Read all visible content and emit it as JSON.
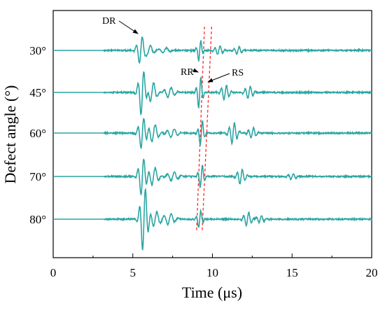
{
  "chart_data": {
    "type": "line",
    "xlabel": "Time (μs)",
    "ylabel": "Defect angle (°)",
    "xlim": [
      0,
      20
    ],
    "x_ticks": [
      "0",
      "5",
      "10",
      "15",
      "20"
    ],
    "grid": false,
    "legend": "none",
    "line_color": "#2aa5a3",
    "series": [
      {
        "name": "30°",
        "bursts": [
          {
            "t": 5.5,
            "amp": 0.9,
            "freq": 2.6,
            "width": 0.28
          },
          {
            "t": 6.0,
            "amp": 0.35,
            "freq": 2.2,
            "width": 0.35
          },
          {
            "t": 7.0,
            "amp": 0.18,
            "freq": 2.0,
            "width": 0.4
          },
          {
            "t": 9.2,
            "amp": 0.75,
            "freq": 3.2,
            "width": 0.18
          },
          {
            "t": 10.4,
            "amp": 0.3,
            "freq": 3.0,
            "width": 0.3
          },
          {
            "t": 11.6,
            "amp": 0.25,
            "freq": 3.0,
            "width": 0.3
          }
        ]
      },
      {
        "name": "45°",
        "bursts": [
          {
            "t": 5.6,
            "amp": 1.6,
            "freq": 2.6,
            "width": 0.28
          },
          {
            "t": 6.2,
            "amp": 0.7,
            "freq": 2.2,
            "width": 0.35
          },
          {
            "t": 7.3,
            "amp": 0.35,
            "freq": 2.2,
            "width": 0.4
          },
          {
            "t": 9.2,
            "amp": 1.1,
            "freq": 3.2,
            "width": 0.2
          },
          {
            "t": 10.8,
            "amp": 0.5,
            "freq": 3.0,
            "width": 0.3
          },
          {
            "t": 12.3,
            "amp": 0.4,
            "freq": 3.0,
            "width": 0.3
          }
        ]
      },
      {
        "name": "60°",
        "bursts": [
          {
            "t": 5.6,
            "amp": 1.1,
            "freq": 2.6,
            "width": 0.28
          },
          {
            "t": 6.3,
            "amp": 0.6,
            "freq": 2.2,
            "width": 0.35
          },
          {
            "t": 7.5,
            "amp": 0.3,
            "freq": 2.2,
            "width": 0.4
          },
          {
            "t": 9.3,
            "amp": 0.9,
            "freq": 3.2,
            "width": 0.2
          },
          {
            "t": 11.3,
            "amp": 0.7,
            "freq": 3.0,
            "width": 0.3
          },
          {
            "t": 12.5,
            "amp": 0.35,
            "freq": 3.0,
            "width": 0.3
          }
        ]
      },
      {
        "name": "70°",
        "bursts": [
          {
            "t": 5.6,
            "amp": 1.3,
            "freq": 2.6,
            "width": 0.28
          },
          {
            "t": 6.3,
            "amp": 0.6,
            "freq": 2.2,
            "width": 0.35
          },
          {
            "t": 7.5,
            "amp": 0.3,
            "freq": 2.2,
            "width": 0.4
          },
          {
            "t": 9.3,
            "amp": 0.8,
            "freq": 3.2,
            "width": 0.2
          },
          {
            "t": 11.8,
            "amp": 0.5,
            "freq": 3.0,
            "width": 0.3
          },
          {
            "t": 15.0,
            "amp": 0.2,
            "freq": 3.0,
            "width": 0.3
          }
        ]
      },
      {
        "name": "80°",
        "bursts": [
          {
            "t": 5.7,
            "amp": 2.2,
            "freq": 2.6,
            "width": 0.28
          },
          {
            "t": 6.4,
            "amp": 0.5,
            "freq": 2.2,
            "width": 0.35
          },
          {
            "t": 7.3,
            "amp": 0.35,
            "freq": 2.2,
            "width": 0.4
          },
          {
            "t": 9.2,
            "amp": 0.6,
            "freq": 3.2,
            "width": 0.2
          },
          {
            "t": 12.2,
            "amp": 0.45,
            "freq": 3.0,
            "width": 0.3
          },
          {
            "t": 13.0,
            "amp": 0.25,
            "freq": 3.0,
            "width": 0.3
          }
        ]
      }
    ],
    "annotations": [
      {
        "text": "DR",
        "target_t": 5.5,
        "target_series": 0
      },
      {
        "text": "RR",
        "target_t": 9.0,
        "target_series": 1
      },
      {
        "text": "RS",
        "target_t": 9.6,
        "target_series": 1
      }
    ],
    "guide_lines": [
      {
        "color": "#ff2a2a",
        "style": "dashed",
        "t_top": 9.5,
        "t_bottom": 9.0
      },
      {
        "color": "#ff2a2a",
        "style": "dashed",
        "t_top": 9.95,
        "t_bottom": 9.35
      }
    ]
  }
}
